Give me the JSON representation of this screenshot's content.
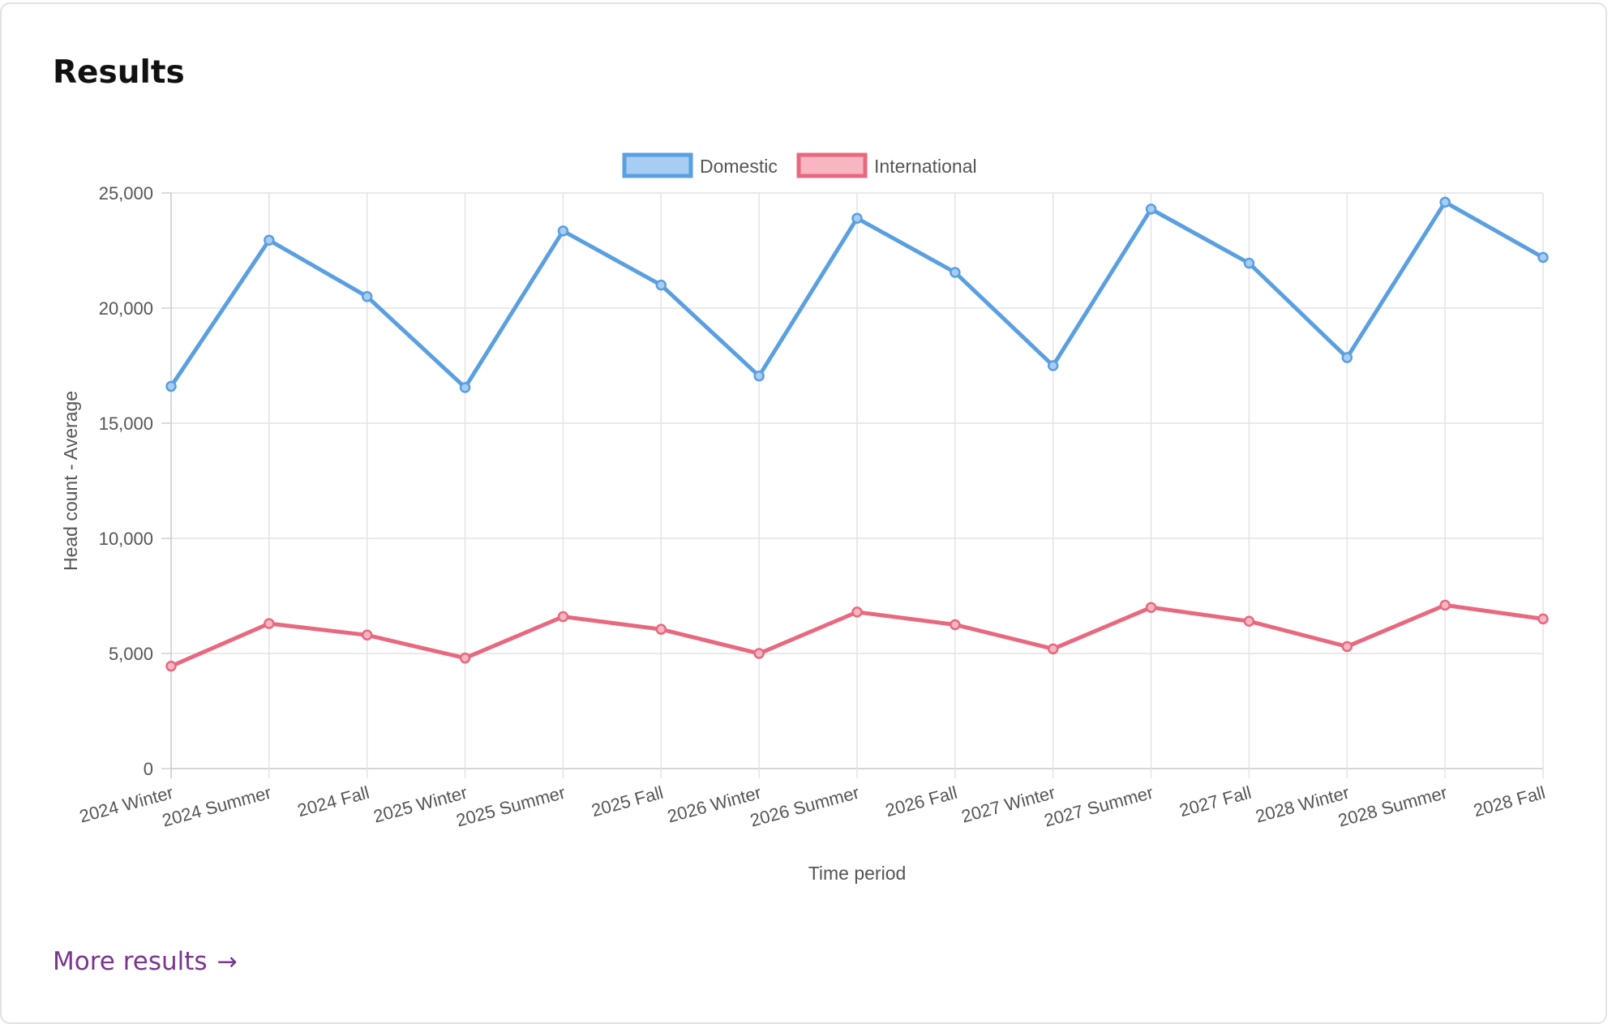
{
  "header": {
    "title": "Results"
  },
  "footer": {
    "more_results_label": "More results",
    "more_results_icon": "arrow-right-icon"
  },
  "colors": {
    "domestic_line": "#5a9fe0",
    "domestic_fill": "#a8cdf2",
    "international_line": "#e8697f",
    "international_fill": "#f7b6c2",
    "link": "#7a3590"
  },
  "chart_data": {
    "type": "line",
    "title": "",
    "xlabel": "Time period",
    "ylabel": "Head count - Average",
    "ylim": [
      0,
      25000
    ],
    "yticks": [
      0,
      5000,
      10000,
      15000,
      20000,
      25000
    ],
    "ytick_labels": [
      "0",
      "5,000",
      "10,000",
      "15,000",
      "20,000",
      "25,000"
    ],
    "grid": true,
    "legend_position": "top-center",
    "categories": [
      "2024 Winter",
      "2024 Summer",
      "2024 Fall",
      "2025 Winter",
      "2025 Summer",
      "2025 Fall",
      "2026 Winter",
      "2026 Summer",
      "2026 Fall",
      "2027 Winter",
      "2027 Summer",
      "2027 Fall",
      "2028 Winter",
      "2028 Summer",
      "2028 Fall"
    ],
    "series": [
      {
        "name": "Domestic",
        "values": [
          16600,
          22950,
          20500,
          16550,
          23350,
          21000,
          17050,
          23900,
          21550,
          17500,
          24300,
          21950,
          17850,
          24600,
          22200
        ]
      },
      {
        "name": "International",
        "values": [
          4450,
          6300,
          5800,
          4800,
          6600,
          6050,
          5000,
          6800,
          6250,
          5200,
          7000,
          6400,
          5300,
          7100,
          6500
        ]
      }
    ]
  }
}
